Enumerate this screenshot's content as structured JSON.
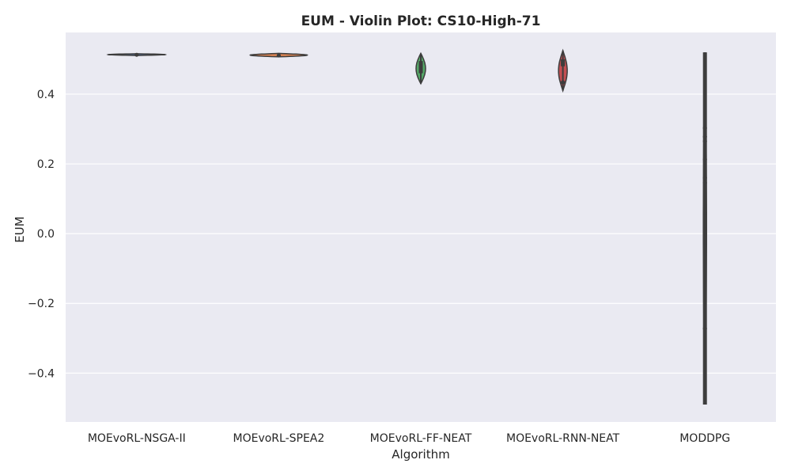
{
  "chart_data": {
    "type": "violin",
    "title": "EUM - Violin Plot: CS10-High-71",
    "xlabel": "Algorithm",
    "ylabel": "EUM",
    "ylim": [
      -0.54,
      0.577
    ],
    "yticks": [
      -0.4,
      -0.2,
      0.0,
      0.2,
      0.4
    ],
    "ytick_labels": [
      "−0.4",
      "−0.2",
      "0.0",
      "0.2",
      "0.4"
    ],
    "grid": true,
    "colors": {
      "plot_background": "#eaeaf2",
      "grid": "#ffffff",
      "inner_line": "#3d3d3d"
    },
    "categories": [
      "MOEvoRL-NSGA-II",
      "MOEvoRL-SPEA2",
      "MOEvoRL-FF-NEAT",
      "MOEvoRL-RNN-NEAT",
      "MODDPG"
    ],
    "series": [
      {
        "category": "MOEvoRL-NSGA-II",
        "color": "#4c72b0",
        "min": 0.511,
        "q1": 0.512,
        "median": 0.513,
        "q3": 0.514,
        "max": 0.516,
        "points": []
      },
      {
        "category": "MOEvoRL-SPEA2",
        "color": "#dd8452",
        "min": 0.507,
        "q1": 0.509,
        "median": 0.511,
        "q3": 0.513,
        "max": 0.517,
        "points": []
      },
      {
        "category": "MOEvoRL-FF-NEAT",
        "color": "#55a868",
        "min": 0.43,
        "q1": 0.46,
        "median": 0.48,
        "q3": 0.495,
        "max": 0.517,
        "points": []
      },
      {
        "category": "MOEvoRL-RNN-NEAT",
        "color": "#c44e52",
        "min": 0.41,
        "q1": 0.48,
        "median": 0.49,
        "q3": 0.5,
        "max": 0.525,
        "points": [
          0.434
        ]
      },
      {
        "category": "MODDPG",
        "color": "#8172b3",
        "min": -0.49,
        "q1": -0.49,
        "median": 0.0,
        "q3": 0.52,
        "max": 0.52,
        "points": [
          0.303,
          0.278,
          0.265,
          0.213,
          0.16,
          0.146,
          0.061,
          0.013,
          -0.272
        ]
      }
    ]
  }
}
